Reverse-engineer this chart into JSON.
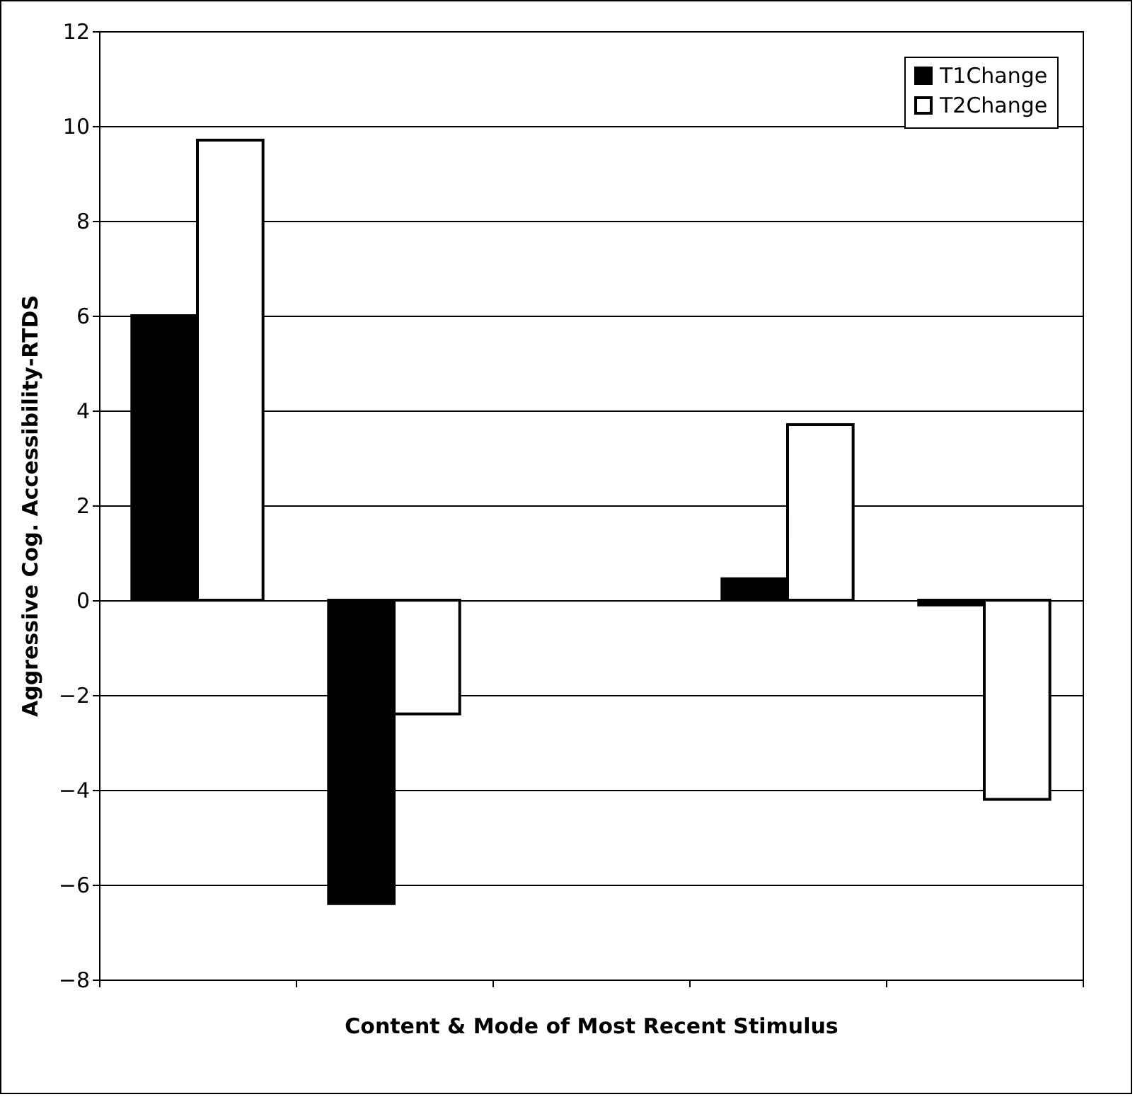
{
  "chart_data": {
    "type": "bar",
    "xlabel": "Content & Mode of Most Recent Stimulus",
    "ylabel": "Aggressive Cog. Accessibility-RTDS",
    "categories": [
      null,
      null,
      null,
      null,
      null
    ],
    "series": [
      {
        "name": "T1Change",
        "color": "#000000",
        "values": [
          6.0,
          -6.4,
          null,
          0.45,
          -0.1
        ]
      },
      {
        "name": "T2Change",
        "color": "#ffffff",
        "values": [
          9.7,
          -2.4,
          null,
          3.7,
          -4.2
        ]
      }
    ],
    "ylim": [
      -8,
      12
    ],
    "yticks": [
      -8,
      -6,
      -4,
      -2,
      0,
      2,
      4,
      6,
      8,
      10,
      12
    ],
    "grid": "y",
    "legend": "top right",
    "tick_labels": "y"
  }
}
